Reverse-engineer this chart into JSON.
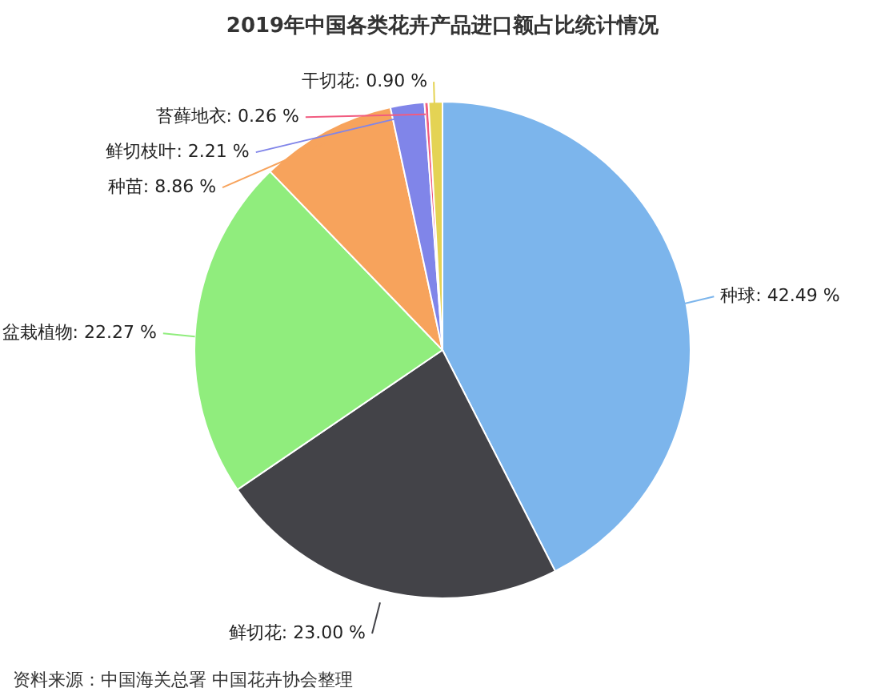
{
  "chart_data": {
    "type": "pie",
    "title": "2019年中国各类花卉产品进口额占比统计情况",
    "categories": [
      "种球",
      "鲜切花",
      "盆栽植物",
      "种苗",
      "鲜切枝叶",
      "苔藓地衣",
      "干切花"
    ],
    "values": [
      42.49,
      23.0,
      22.27,
      8.86,
      2.21,
      0.26,
      0.9
    ],
    "value_labels": [
      "42.49 %",
      "23.00 %",
      "22.27 %",
      "8.86 %",
      "2.21 %",
      "0.26 %",
      "0.90 %"
    ],
    "colors": [
      "#7cb5ec",
      "#434348",
      "#90ed7d",
      "#f7a35c",
      "#8085e9",
      "#f15c80",
      "#e4d354"
    ],
    "annotations": [
      "资料来源：中国海关总署 中国花卉协会整理"
    ]
  }
}
